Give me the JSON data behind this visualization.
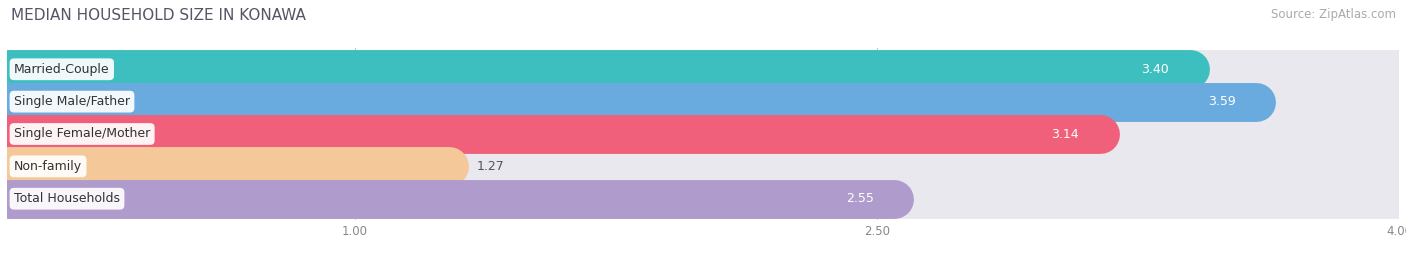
{
  "title": "MEDIAN HOUSEHOLD SIZE IN KONAWA",
  "source": "Source: ZipAtlas.com",
  "categories": [
    "Married-Couple",
    "Single Male/Father",
    "Single Female/Mother",
    "Non-family",
    "Total Households"
  ],
  "values": [
    3.4,
    3.59,
    3.14,
    1.27,
    2.55
  ],
  "bar_colors": [
    "#3dbfbf",
    "#6aabdf",
    "#f0607a",
    "#f5c89a",
    "#b09ccc"
  ],
  "track_color": "#e8e8ee",
  "xlim_left": 0.0,
  "xlim_right": 4.0,
  "xticks": [
    1.0,
    2.5,
    4.0
  ],
  "bar_height": 0.62,
  "label_fontsize": 9.0,
  "value_fontsize": 9.0,
  "title_fontsize": 11,
  "source_fontsize": 8.5
}
